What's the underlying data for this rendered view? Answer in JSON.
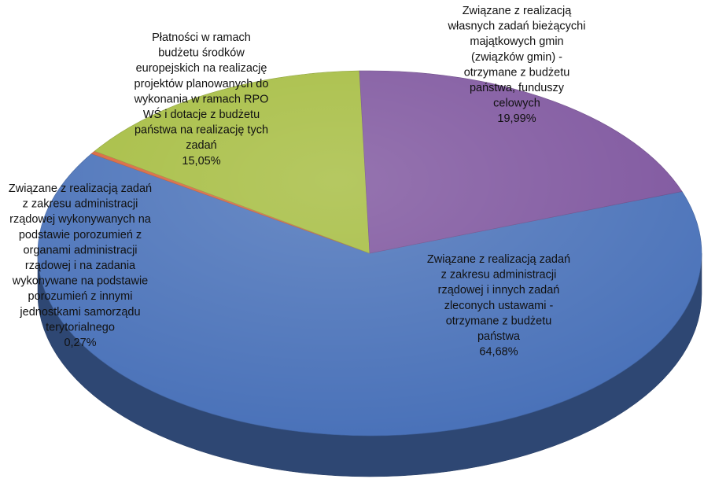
{
  "chart_data": {
    "type": "pie",
    "style": "3d",
    "slices": [
      {
        "label_lines": [
          "Związane z realizacją zadań",
          "z zakresu administracji",
          "rządowej  i innych zadań",
          "zleconych ustawami -",
          "otrzymane z budżetu",
          "państwa"
        ],
        "value": 64.68,
        "value_label": "64,68%",
        "color": "#4A72B9"
      },
      {
        "label_lines": [
          "Związane z realizacją zadań",
          "z zakresu administracji",
          "rządowej wykonywanych na",
          "podstawie porozumień z",
          "organami administracji",
          "rządowej i na zadania",
          "wykonywane na podstawie",
          "porozumień z innymi",
          "jednostkami samorządu",
          "terytorialnego"
        ],
        "value": 0.27,
        "value_label": "0,27%",
        "color": "#D8643A"
      },
      {
        "label_lines": [
          "Płatności  w ramach",
          "budżetu środków",
          "europejskich  na realizację",
          "projektów planowanych do",
          "wykonania  w ramach RPO",
          "WŚ i dotacje z budżetu",
          "państwa na realizację tych",
          "zadań"
        ],
        "value": 15.05,
        "value_label": "15,05%",
        "color": "#A5BC3F"
      },
      {
        "label_lines": [
          "Związane z realizacją",
          "własnych zadań  bieżącychi",
          "majątkowych gmin",
          "(związków gmin) -",
          "otrzymane z budżetu",
          "państwa, funduszy",
          "celowych"
        ],
        "value": 19.99,
        "value_label": "19,99%",
        "color": "#7E559E"
      }
    ]
  }
}
